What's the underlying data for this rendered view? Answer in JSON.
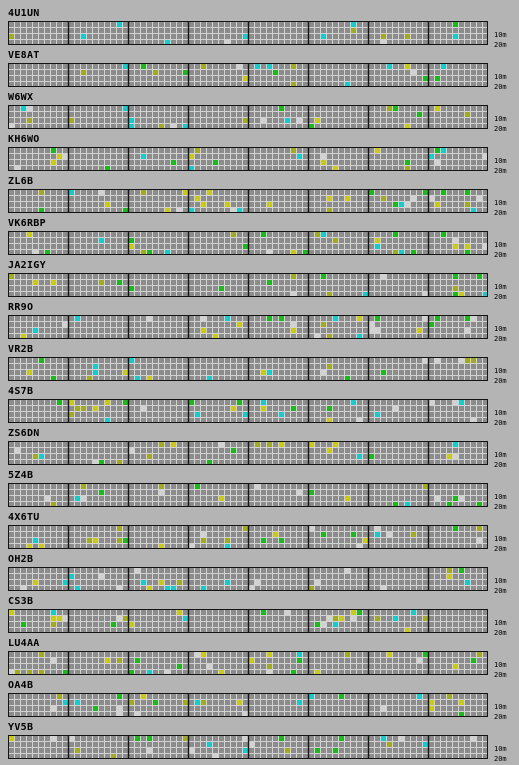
{
  "band_labels": {
    "top": "10m",
    "bottom": "20m"
  },
  "colors": {
    "grid_bg": "#8c8c8c",
    "grid_line": "#d2d2d2",
    "block_line": "#141414",
    "page_bg": "#b4b4b4",
    "spot_cyan": "#1fc8c8",
    "spot_green": "#23b423",
    "spot_yellow": "#c8c81e",
    "spot_olive": "#a0aa28",
    "spot_white": "#d2d2d2"
  },
  "beacons": [
    {
      "callsign": "4U1UN"
    },
    {
      "callsign": "VE8AT"
    },
    {
      "callsign": "W6WX"
    },
    {
      "callsign": "KH6WO"
    },
    {
      "callsign": "ZL6B"
    },
    {
      "callsign": "VK6RBP"
    },
    {
      "callsign": "JA2IGY"
    },
    {
      "callsign": "RR9O"
    },
    {
      "callsign": "VR2B"
    },
    {
      "callsign": "4S7B"
    },
    {
      "callsign": "ZS6DN"
    },
    {
      "callsign": "5Z4B"
    },
    {
      "callsign": "4X6TU"
    },
    {
      "callsign": "OH2B"
    },
    {
      "callsign": "CS3B"
    },
    {
      "callsign": "LU4AA"
    },
    {
      "callsign": "OA4B"
    },
    {
      "callsign": "YV5B"
    }
  ]
}
